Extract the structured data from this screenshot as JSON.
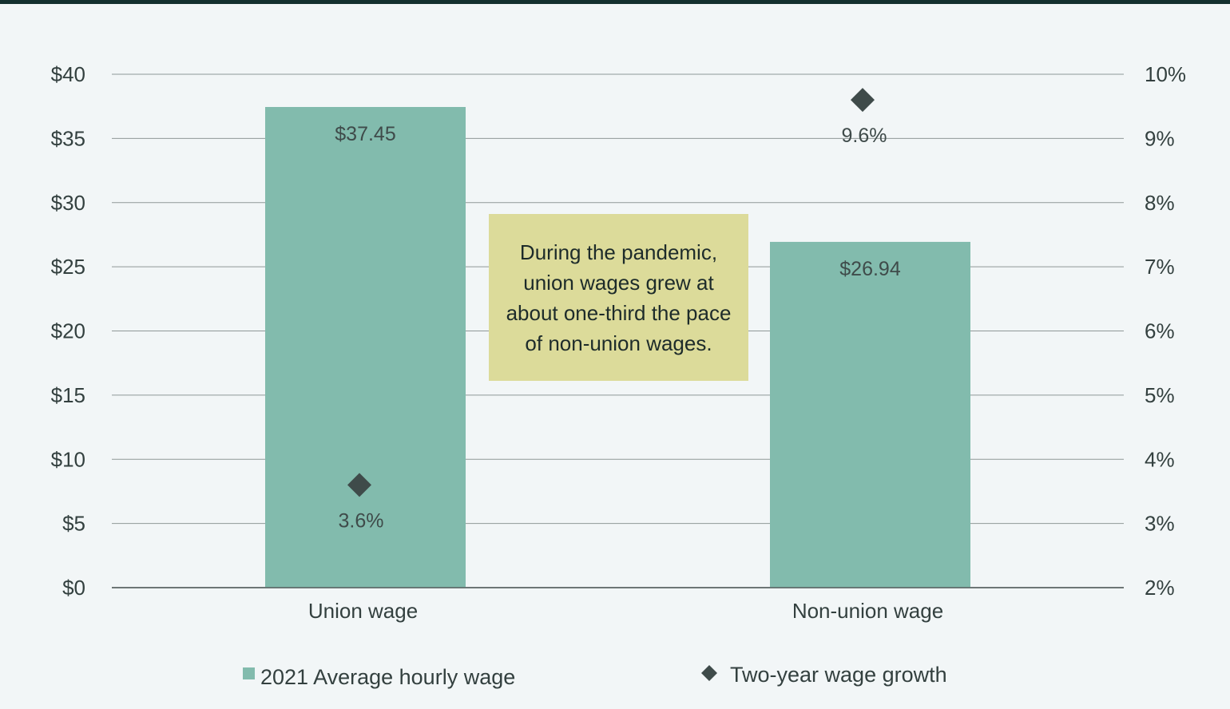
{
  "chart_data": {
    "type": "bar",
    "categories": [
      "Union wage",
      "Non-union wage"
    ],
    "series": [
      {
        "name": "2021 Average hourly wage",
        "kind": "bar",
        "axis": "left",
        "values": [
          37.45,
          26.94
        ],
        "labels": [
          "$37.45",
          "$26.94"
        ],
        "color": "#82bbad"
      },
      {
        "name": "Two-year wage growth",
        "kind": "marker",
        "marker": "diamond",
        "axis": "right",
        "values": [
          3.6,
          9.6
        ],
        "labels": [
          "3.6%",
          "9.6%"
        ],
        "color": "#3f4b4a"
      }
    ],
    "ylim_left": [
      0,
      40
    ],
    "ylim_right": [
      2,
      10
    ],
    "left_ticks": [
      "$0",
      "$5",
      "$10",
      "$15",
      "$20",
      "$25",
      "$30",
      "$35",
      "$40"
    ],
    "right_ticks": [
      "2%",
      "3%",
      "4%",
      "5%",
      "6%",
      "7%",
      "8%",
      "9%",
      "10%"
    ],
    "grid": true,
    "legend_position": "bottom",
    "annotation": "During the pandemic, union wages grew at about one-third the pace of non-union wages."
  }
}
